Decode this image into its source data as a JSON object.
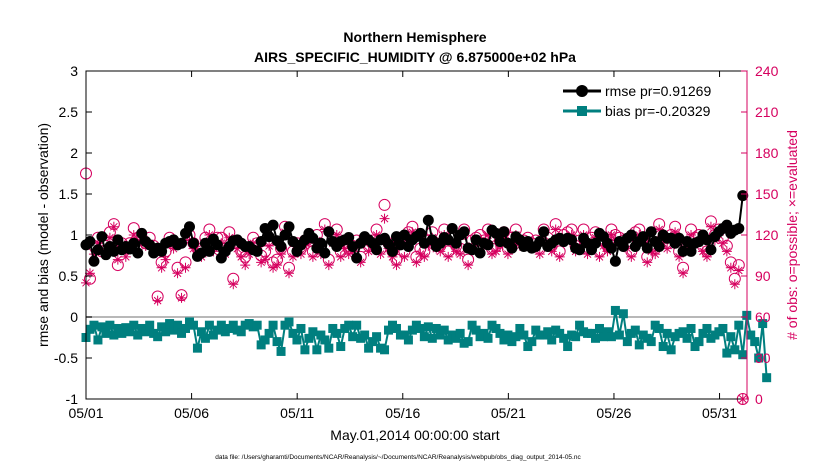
{
  "chart_data": {
    "type": "line",
    "title_line1": "Northern Hemisphere",
    "title_line2": "AIRS_SPECIFIC_HUMIDITY @ 6.875000e+02 hPa",
    "xlabel": "May.01,2014 00:00:00 start",
    "ylabel_left": "rmse and bias (model - observation)",
    "ylabel_right": "# of obs: o=possible; ×=evaluated",
    "footer": "data file: /Users/gharamti/Documents/NCAR/Reanalysis/~/Documents/NCAR/Reanalysis/webpub/obs_diag_output_2014-05.nc",
    "x_range": [
      0,
      31.3
    ],
    "ylim_left": [
      -1,
      3
    ],
    "ylim_right": [
      0,
      240
    ],
    "x_ticks": [
      {
        "x": 0,
        "label": "05/01"
      },
      {
        "x": 5,
        "label": "05/06"
      },
      {
        "x": 10,
        "label": "05/11"
      },
      {
        "x": 15,
        "label": "05/16"
      },
      {
        "x": 20,
        "label": "05/21"
      },
      {
        "x": 25,
        "label": "05/26"
      },
      {
        "x": 30,
        "label": "05/31"
      }
    ],
    "y_ticks_left": [
      "-1",
      "-0.5",
      "0",
      "0.5",
      "1",
      "1.5",
      "2",
      "2.5",
      "3"
    ],
    "y_ticks_right": [
      "0",
      "30",
      "60",
      "90",
      "120",
      "150",
      "180",
      "210",
      "240"
    ],
    "zero_line": 0,
    "series": [
      {
        "name": "rmse",
        "legend": "rmse pr=0.91269",
        "color": "#000000",
        "marker": "circle",
        "values": [
          0.88,
          0.92,
          0.68,
          0.82,
          0.98,
          0.76,
          0.86,
          0.8,
          0.94,
          0.82,
          0.86,
          0.83,
          0.9,
          0.78,
          1.02,
          0.92,
          0.88,
          0.78,
          0.84,
          0.8,
          0.9,
          0.92,
          0.94,
          0.88,
          0.9,
          1.02,
          1.1,
          0.9,
          0.74,
          0.78,
          0.9,
          0.8,
          0.95,
          0.88,
          0.72,
          0.8,
          0.86,
          0.93,
          0.94,
          0.9,
          0.86,
          0.86,
          0.82,
          0.8,
          0.92,
          1.08,
          0.98,
          1.12,
          0.93,
          0.86,
          1.0,
          1.1,
          0.92,
          0.8,
          0.88,
          0.94,
          1.02,
          0.96,
          0.84,
          0.9,
          0.78,
          1.04,
          0.92,
          0.86,
          0.92,
          0.94,
          0.97,
          0.86,
          0.72,
          0.9,
          0.98,
          0.94,
          0.9,
          0.82,
          0.94,
          0.96,
          0.89,
          0.8,
          0.98,
          0.88,
          1.0,
          0.86,
          0.94,
          0.98,
          1.02,
          0.9,
          1.18,
          0.94,
          0.86,
          0.9,
          0.97,
          0.94,
          1.08,
          0.9,
          1.0,
          1.04,
          0.84,
          0.82,
          0.94,
          0.78,
          0.9,
          0.88,
          1.06,
          1.02,
          0.92,
          1.04,
          0.9,
          0.84,
          0.98,
          0.94,
          0.86,
          0.92,
          0.84,
          0.86,
          0.92,
          1.04,
          0.86,
          0.9,
          0.94,
          0.96,
          0.92,
          0.96,
          0.94,
          0.84,
          0.82,
          0.96,
          0.9,
          0.82,
          0.9,
          1.02,
          0.98,
          0.9,
          0.84,
          0.68,
          0.92,
          0.86,
          0.96,
          1.0,
          0.86,
          0.92,
          0.98,
          0.84,
          1.04,
          0.92,
          0.86,
          1.0,
          0.96,
          0.96,
          0.9,
          0.96,
          0.8,
          0.92,
          0.8,
          0.9,
          0.92,
          1.0,
          0.94,
          0.82,
          0.98,
          1.04,
          1.08,
          1.12,
          1.02,
          1.06,
          1.08,
          1.48
        ]
      },
      {
        "name": "bias",
        "legend": "bias pr=-0.20329",
        "color": "#007f7f",
        "marker": "square",
        "values": [
          -0.25,
          -0.15,
          -0.1,
          -0.28,
          -0.12,
          -0.2,
          -0.1,
          -0.22,
          -0.14,
          -0.2,
          -0.13,
          -0.18,
          -0.1,
          -0.22,
          -0.14,
          -0.18,
          -0.1,
          -0.2,
          -0.24,
          -0.12,
          -0.18,
          -0.08,
          -0.16,
          -0.1,
          -0.2,
          -0.14,
          -0.06,
          -0.1,
          -0.38,
          -0.18,
          -0.26,
          -0.1,
          -0.22,
          -0.16,
          -0.1,
          -0.18,
          -0.14,
          -0.1,
          -0.16,
          -0.18,
          -0.1,
          -0.08,
          -0.12,
          -0.1,
          -0.34,
          -0.28,
          -0.2,
          -0.1,
          -0.3,
          -0.42,
          -0.1,
          -0.06,
          -0.2,
          -0.28,
          -0.14,
          -0.4,
          -0.26,
          -0.18,
          -0.4,
          -0.22,
          -0.28,
          -0.38,
          -0.14,
          -0.2,
          -0.36,
          -0.14,
          -0.1,
          -0.24,
          -0.1,
          -0.26,
          -0.22,
          -0.38,
          -0.3,
          -0.24,
          -0.38,
          -0.4,
          -0.16,
          -0.1,
          -0.14,
          -0.22,
          -0.22,
          -0.28,
          -0.16,
          -0.1,
          -0.14,
          -0.24,
          -0.12,
          -0.26,
          -0.14,
          -0.22,
          -0.16,
          -0.28,
          -0.22,
          -0.26,
          -0.2,
          -0.32,
          -0.3,
          -0.1,
          -0.16,
          -0.24,
          -0.2,
          -0.26,
          -0.1,
          -0.14,
          -0.2,
          -0.28,
          -0.22,
          -0.3,
          -0.24,
          -0.14,
          -0.22,
          -0.36,
          -0.3,
          -0.16,
          -0.22,
          -0.22,
          -0.18,
          -0.28,
          -0.16,
          -0.2,
          -0.26,
          -0.36,
          -0.22,
          -0.24,
          -0.1,
          -0.18,
          -0.2,
          -0.2,
          -0.26,
          -0.14,
          -0.24,
          -0.18,
          -0.24,
          0.08,
          -0.22,
          0.04,
          -0.3,
          -0.2,
          -0.16,
          -0.34,
          -0.22,
          -0.26,
          -0.3,
          -0.1,
          -0.14,
          -0.36,
          -0.2,
          -0.4,
          -0.24,
          -0.2,
          -0.18,
          -0.26,
          -0.14,
          -0.36,
          -0.3,
          -0.2,
          -0.14,
          -0.26,
          -0.22,
          -0.18,
          -0.14,
          -0.44,
          -0.24,
          -0.4,
          -0.1,
          -0.46,
          0.02,
          -0.22,
          -0.3,
          -0.5,
          -0.08,
          -0.74
        ]
      },
      {
        "name": "possible",
        "marker": "open-circle",
        "color": "#d6005f",
        "values": [
          165,
          88,
          112,
          118,
          108,
          112,
          122,
          128,
          98,
          114,
          110,
          114,
          125,
          118,
          118,
          114,
          118,
          112,
          75,
          100,
          108,
          118,
          114,
          96,
          76,
          100,
          120,
          114,
          110,
          108,
          118,
          124,
          112,
          118,
          118,
          110,
          122,
          88,
          114,
          108,
          104,
          110,
          118,
          114,
          105,
          108,
          116,
          100,
          102,
          110,
          126,
          96,
          108,
          114,
          110,
          116,
          118,
          108,
          120,
          110,
          128,
          102,
          118,
          124,
          108,
          114,
          110,
          112,
          116,
          104,
          118,
          112,
          116,
          124,
          110,
          142,
          114,
          108,
          102,
          118,
          108,
          122,
          126,
          104,
          110,
          108,
          116,
          122,
          114,
          112,
          124,
          108,
          118,
          112,
          110,
          124,
          102,
          116,
          118,
          120,
          116,
          124,
          110,
          112,
          116,
          122,
          110,
          118,
          124,
          116,
          116,
          118,
          114,
          116,
          110,
          124,
          118,
          112,
          128,
          108,
          120,
          122,
          124,
          112,
          116,
          124,
          110,
          118,
          122,
          108,
          116,
          112,
          124,
          120,
          118,
          116,
          114,
          108,
          122,
          124,
          118,
          104,
          112,
          110,
          128,
          118,
          114,
          120,
          126,
          108,
          96,
          114,
          124,
          118,
          120,
          112,
          108,
          130,
          120,
          124,
          118,
          112,
          100,
          88,
          98,
          0
        ]
      },
      {
        "name": "evaluated",
        "marker": "asterisk",
        "color": "#d6005f",
        "values": [
          85,
          92,
          106,
          114,
          108,
          110,
          118,
          126,
          102,
          112,
          104,
          110,
          120,
          116,
          114,
          112,
          114,
          110,
          72,
          96,
          102,
          114,
          110,
          92,
          74,
          96,
          116,
          110,
          106,
          104,
          114,
          120,
          108,
          114,
          114,
          106,
          118,
          84,
          110,
          104,
          98,
          106,
          114,
          110,
          100,
          102,
          112,
          96,
          98,
          106,
          122,
          92,
          104,
          110,
          106,
          112,
          114,
          104,
          116,
          106,
          124,
          98,
          114,
          120,
          104,
          110,
          106,
          108,
          112,
          100,
          114,
          108,
          112,
          120,
          106,
          132,
          110,
          104,
          98,
          114,
          104,
          118,
          122,
          100,
          106,
          104,
          112,
          118,
          110,
          108,
          120,
          104,
          114,
          108,
          106,
          120,
          98,
          112,
          114,
          116,
          112,
          120,
          106,
          108,
          112,
          118,
          106,
          114,
          120,
          112,
          112,
          114,
          110,
          112,
          106,
          120,
          114,
          108,
          124,
          104,
          116,
          118,
          120,
          108,
          112,
          120,
          106,
          114,
          118,
          104,
          112,
          108,
          120,
          116,
          114,
          112,
          110,
          104,
          118,
          120,
          114,
          100,
          108,
          106,
          124,
          114,
          110,
          116,
          122,
          104,
          92,
          110,
          120,
          114,
          116,
          108,
          104,
          126,
          116,
          120,
          114,
          108,
          96,
          84,
          94,
          0
        ]
      }
    ]
  }
}
